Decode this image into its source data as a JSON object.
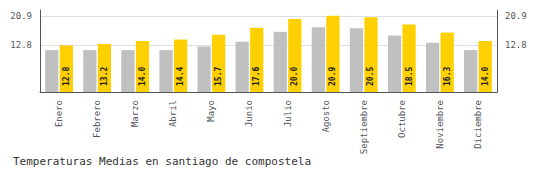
{
  "chart_data": {
    "type": "bar",
    "title": "Temperaturas Medias en santiago de compostela",
    "categories": [
      "Enero",
      "Febrero",
      "Marzo",
      "Abril",
      "Mayo",
      "Junio",
      "Julio",
      "Agosto",
      "Septiembre",
      "Octubre",
      "Noviembre",
      "Diciembre"
    ],
    "series": [
      {
        "color": "#C0C0C0",
        "values": [
          11.5,
          11.5,
          11.5,
          11.5,
          12.5,
          13.8,
          16.5,
          17.8,
          17.5,
          15.5,
          13.5,
          11.5
        ]
      },
      {
        "color": "#FFD000",
        "values": [
          12.8,
          13.2,
          14.0,
          14.4,
          15.7,
          17.6,
          20.0,
          20.9,
          20.5,
          18.5,
          16.3,
          14.0
        ],
        "data_labels": true,
        "value_labels": [
          "12.8",
          "13.2",
          "14.0",
          "14.4",
          "15.7",
          "17.6",
          "20.0",
          "20.9",
          "20.5",
          "18.5",
          "16.3",
          "14.0"
        ]
      }
    ],
    "ylim": [
      0,
      22.5
    ],
    "yticks": [
      12.8,
      20.9
    ],
    "y2lim": [
      0,
      22.5
    ],
    "y2ticks": [
      12.8,
      20.9
    ],
    "grid": true
  }
}
